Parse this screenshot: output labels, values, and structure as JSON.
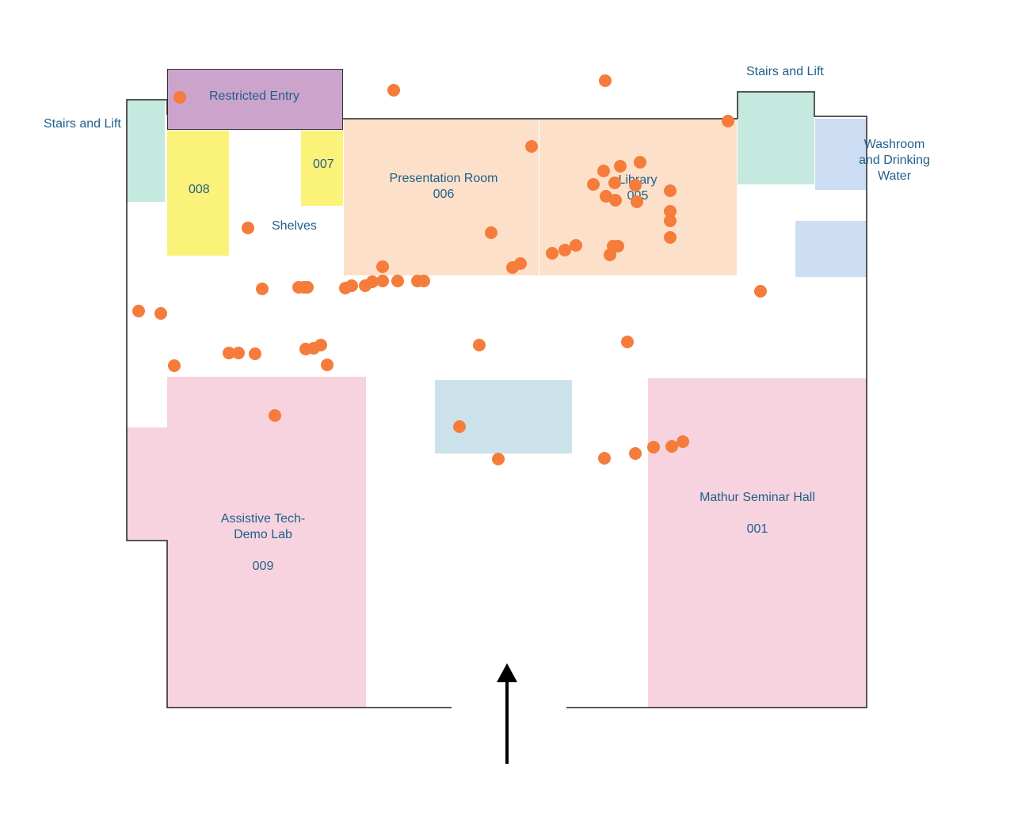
{
  "colors": {
    "restricted": "#cba3cb",
    "yellow_room": "#fbf27a",
    "peach_room": "#fde0c9",
    "mint_room": "#c6e9df",
    "blue_room": "#cdddf3",
    "pink_room": "#f7d3df",
    "center_block": "#cbe2ea",
    "label_text": "#1f5f8b",
    "visit_point": "#f57c3a",
    "wall": "#222222"
  },
  "labels": {
    "stairs_left": "Stairs and Lift",
    "stairs_right": "Stairs and Lift",
    "restricted": "Restricted Entry",
    "room_007": "007",
    "room_008": "008",
    "shelves": "Shelves",
    "presentation_name": "Presentation Room",
    "presentation_number": "006",
    "library_name": "Library",
    "library_number": "005",
    "washroom_line1": "Washroom",
    "washroom_line2": "and Drinking",
    "washroom_line3": "Water",
    "assistive_line1": "Assistive Tech-",
    "assistive_line2": "Demo Lab",
    "assistive_number": "009",
    "mathur_name": "Mathur Seminar Hall",
    "mathur_number": "001"
  },
  "entrance_icon": "up-arrow-icon",
  "visit_marker_icon": "dot-icon"
}
